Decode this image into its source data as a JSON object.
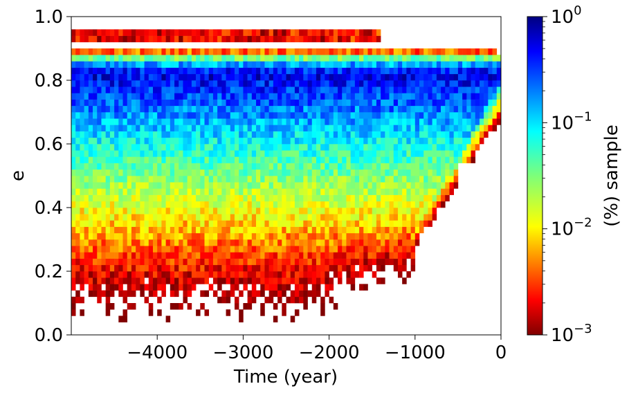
{
  "chart_data": {
    "type": "heatmap",
    "xlabel": "Time (year)",
    "ylabel": "e",
    "xlim": [
      -5000,
      0
    ],
    "ylim": [
      0.0,
      1.0
    ],
    "x_ticks": [
      -4000,
      -3000,
      -2000,
      -1000,
      0
    ],
    "x_tick_labels": [
      "−4000",
      "−3000",
      "−2000",
      "−1000",
      "0"
    ],
    "y_ticks": [
      0.0,
      0.2,
      0.4,
      0.6,
      0.8,
      1.0
    ],
    "y_tick_labels": [
      "0.0",
      "0.2",
      "0.4",
      "0.6",
      "0.8",
      "1.0"
    ],
    "grid": false,
    "colorbar": {
      "label": "(%) sample",
      "scale": "log",
      "range": [
        0.001,
        1
      ],
      "colormap": "jet_r",
      "ticks": [
        0.001,
        0.01,
        0.1,
        1
      ],
      "tick_labels": [
        {
          "base": "10",
          "exp": "−3"
        },
        {
          "base": "10",
          "exp": "−2"
        },
        {
          "base": "10",
          "exp": "−1"
        },
        {
          "base": "10",
          "exp": "0"
        }
      ]
    },
    "distribution": {
      "description_units": "eccentricity e vs time; values are % of sample per bin",
      "peak_e": 0.81,
      "peak_value": 0.5,
      "upper_band": {
        "e_range": [
          0.92,
          0.95
        ],
        "end_time": -1400,
        "value": 0.002
      },
      "convergence": {
        "time": 0,
        "e": 0.83
      },
      "lower_cutoff_end_time": -500
    }
  }
}
